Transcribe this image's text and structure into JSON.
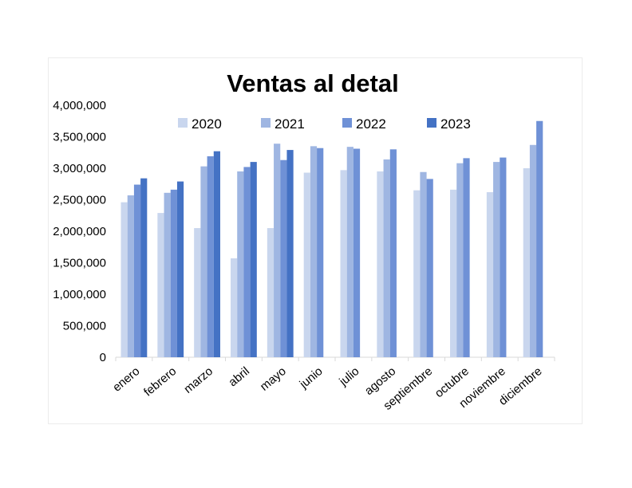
{
  "chart_data": {
    "type": "bar",
    "title": "Ventas al detal",
    "xlabel": "",
    "ylabel": "",
    "ylim": [
      0,
      4000000
    ],
    "yticks": [
      0,
      500000,
      1000000,
      1500000,
      2000000,
      2500000,
      3000000,
      3500000,
      4000000
    ],
    "ytick_labels": [
      "0",
      "500,000",
      "1,000,000",
      "1,500,000",
      "2,000,000",
      "2,500,000",
      "3,000,000",
      "3,500,000",
      "4,000,000"
    ],
    "categories": [
      "enero",
      "febrero",
      "marzo",
      "abril",
      "mayo",
      "junio",
      "julio",
      "agosto",
      "septiembre",
      "octubre",
      "noviembre",
      "diciembre"
    ],
    "series": [
      {
        "name": "2020",
        "color": "#c9d6ee",
        "values": [
          2460000,
          2290000,
          2050000,
          1570000,
          2050000,
          2930000,
          2970000,
          2950000,
          2650000,
          2660000,
          2620000,
          3000000
        ]
      },
      {
        "name": "2021",
        "color": "#9fb6e2",
        "values": [
          2570000,
          2610000,
          3030000,
          2950000,
          3390000,
          3350000,
          3340000,
          3140000,
          2940000,
          3080000,
          3100000,
          3370000
        ]
      },
      {
        "name": "2022",
        "color": "#6f91d6",
        "values": [
          2740000,
          2660000,
          3190000,
          3020000,
          3130000,
          3320000,
          3310000,
          3300000,
          2830000,
          3160000,
          3170000,
          3750000
        ]
      },
      {
        "name": "2023",
        "color": "#4472c4",
        "values": [
          2840000,
          2790000,
          3270000,
          3100000,
          3290000,
          null,
          null,
          null,
          null,
          null,
          null,
          null
        ]
      }
    ],
    "legend_position": "top",
    "grid": false
  }
}
